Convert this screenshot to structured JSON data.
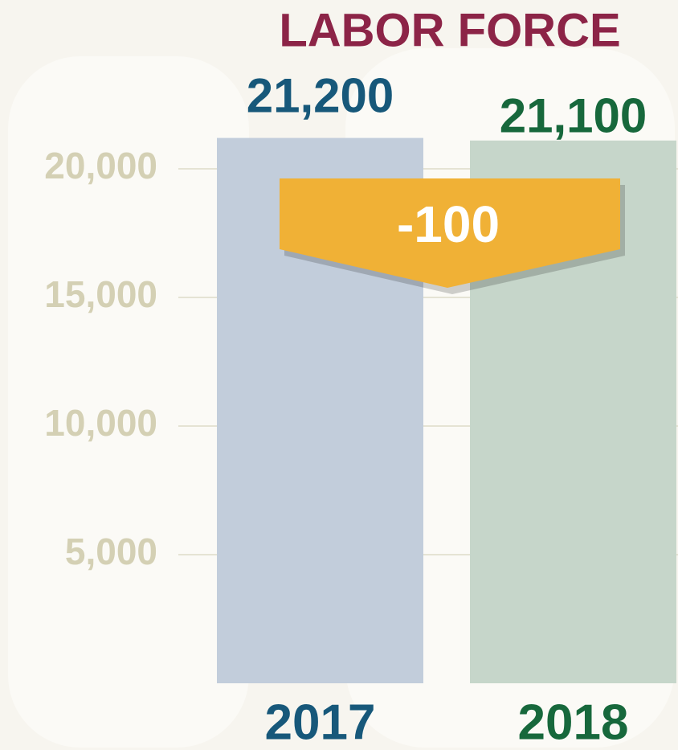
{
  "chart_data": {
    "type": "bar",
    "title": "LABOR FORCE",
    "categories": [
      "2017",
      "2018"
    ],
    "values": [
      21200,
      21100
    ],
    "value_labels": [
      "21,200",
      "21,100"
    ],
    "colors": [
      "#c2cddb",
      "#c6d6ca"
    ],
    "label_colors": [
      "#17587a",
      "#17683c"
    ],
    "annotation": "-100",
    "ylim": [
      0,
      22000
    ],
    "yticks": [
      {
        "value": 5000,
        "label": "5,000"
      },
      {
        "value": 10000,
        "label": "10,000"
      },
      {
        "value": 15000,
        "label": "15,000"
      },
      {
        "value": 20000,
        "label": "20,000"
      }
    ],
    "grid": true
  }
}
